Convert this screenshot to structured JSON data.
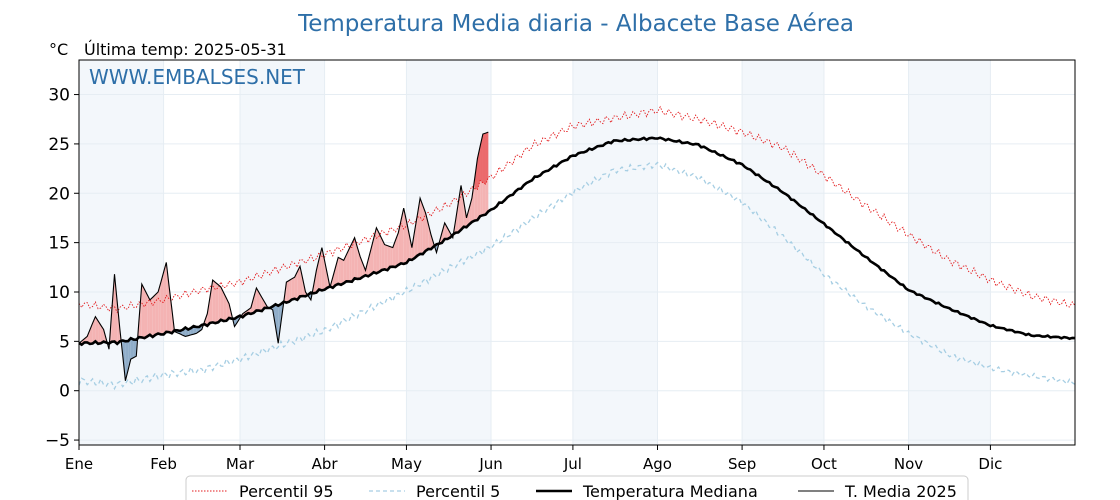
{
  "chart_data": {
    "type": "line",
    "title": "Temperatura Media diaria - Albacete Base Aérea",
    "unit_label": "°C",
    "last_temp_label": "Última temp: 2025-05-31",
    "watermark": "WWW.EMBALSES.NET",
    "xlabel": "",
    "ylabel": "°C",
    "ylim": [
      -5.5,
      33.5
    ],
    "xlim": [
      1,
      366
    ],
    "y_ticks": [
      -5,
      0,
      5,
      10,
      15,
      20,
      25,
      30
    ],
    "y_tick_labels": [
      "−5",
      "0",
      "5",
      "10",
      "15",
      "20",
      "25",
      "30"
    ],
    "months": [
      {
        "label": "Ene",
        "day": 1
      },
      {
        "label": "Feb",
        "day": 32
      },
      {
        "label": "Mar",
        "day": 60
      },
      {
        "label": "Abr",
        "day": 91
      },
      {
        "label": "May",
        "day": 121
      },
      {
        "label": "Jun",
        "day": 152
      },
      {
        "label": "Jul",
        "day": 182
      },
      {
        "label": "Ago",
        "day": 213
      },
      {
        "label": "Sep",
        "day": 244
      },
      {
        "label": "Oct",
        "day": 274
      },
      {
        "label": "Nov",
        "day": 305
      },
      {
        "label": "Dic",
        "day": 335
      }
    ],
    "grid": true,
    "legend_position": "bottom-center",
    "series": [
      {
        "name": "Percentil 95",
        "color": "#e31a1c",
        "style": "dotted",
        "x": [
          1,
          15,
          32,
          46,
          60,
          75,
          91,
          106,
          121,
          136,
          152,
          167,
          182,
          197,
          213,
          228,
          244,
          259,
          274,
          289,
          305,
          320,
          335,
          350,
          366
        ],
        "values": [
          8.8,
          8.3,
          9.2,
          10.2,
          11.0,
          12.4,
          13.8,
          15.3,
          16.8,
          18.8,
          21.6,
          24.8,
          26.8,
          27.6,
          28.4,
          27.5,
          26.2,
          24.6,
          21.8,
          18.8,
          15.8,
          13.2,
          11.2,
          9.6,
          8.6
        ]
      },
      {
        "name": "Percentil 5",
        "color": "#a6cee3",
        "style": "dashed",
        "x": [
          1,
          15,
          32,
          46,
          60,
          75,
          91,
          106,
          121,
          136,
          152,
          167,
          182,
          197,
          213,
          228,
          244,
          259,
          274,
          289,
          305,
          320,
          335,
          350,
          366
        ],
        "values": [
          1.0,
          0.6,
          1.6,
          2.1,
          3.2,
          4.6,
          6.1,
          8.1,
          10.1,
          12.3,
          14.6,
          17.4,
          20.1,
          22.3,
          22.9,
          21.6,
          19.1,
          15.6,
          11.8,
          8.6,
          5.8,
          3.6,
          2.3,
          1.5,
          0.8
        ]
      },
      {
        "name": "Temperatura Mediana",
        "color": "#000000",
        "style": "solid-thick",
        "x": [
          1,
          15,
          32,
          46,
          60,
          75,
          91,
          106,
          121,
          136,
          152,
          167,
          182,
          197,
          213,
          228,
          244,
          259,
          274,
          289,
          305,
          320,
          335,
          350,
          366
        ],
        "values": [
          4.8,
          4.9,
          5.8,
          6.6,
          7.5,
          8.8,
          10.3,
          11.6,
          13.0,
          15.4,
          18.3,
          21.4,
          23.8,
          25.3,
          25.6,
          24.9,
          22.9,
          20.1,
          16.9,
          13.6,
          10.2,
          8.3,
          6.6,
          5.6,
          5.3
        ]
      },
      {
        "name": "T. Media 2025",
        "color": "#000000",
        "style": "solid-thin",
        "x": [
          1,
          4,
          7,
          10,
          12,
          14,
          16,
          18,
          20,
          22,
          24,
          27,
          30,
          33,
          36,
          40,
          44,
          46,
          48,
          50,
          53,
          56,
          58,
          61,
          64,
          66,
          70,
          72,
          74,
          77,
          80,
          82,
          84,
          86,
          88,
          90,
          93,
          96,
          98,
          102,
          104,
          106,
          110,
          113,
          116,
          118,
          120,
          123,
          126,
          128,
          130,
          132,
          135,
          138,
          141,
          143,
          145,
          147,
          149,
          151
        ],
        "values": [
          4.8,
          5.5,
          7.5,
          6.2,
          4.2,
          11.8,
          6.2,
          1.0,
          3.2,
          3.5,
          10.8,
          9.2,
          10.0,
          13.0,
          6.0,
          5.5,
          5.8,
          6.2,
          7.8,
          11.2,
          10.5,
          8.8,
          6.5,
          7.8,
          8.4,
          10.4,
          8.5,
          8.2,
          4.8,
          11.0,
          11.5,
          12.6,
          10.0,
          9.2,
          12.2,
          14.5,
          10.5,
          13.5,
          13.2,
          15.5,
          13.6,
          12.2,
          16.5,
          14.8,
          14.5,
          16.0,
          18.5,
          14.5,
          19.5,
          18.0,
          15.8,
          14.0,
          17.0,
          15.5,
          20.8,
          17.5,
          19.5,
          23.5,
          26.0,
          26.2
        ]
      }
    ]
  }
}
